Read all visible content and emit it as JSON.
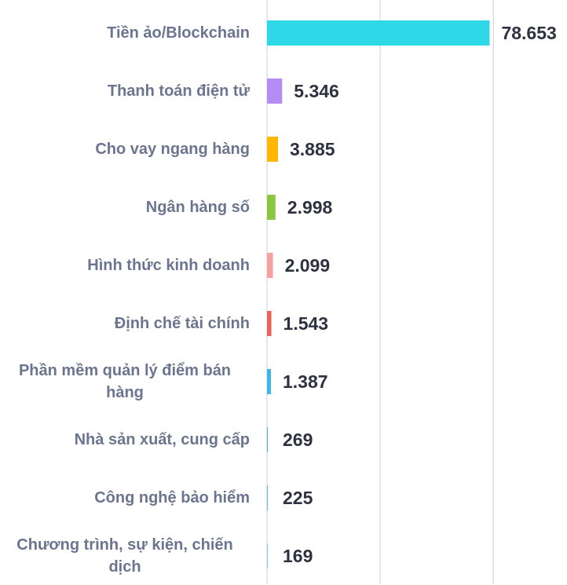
{
  "chart_data": {
    "type": "bar",
    "orientation": "horizontal",
    "categories": [
      "Tiền ảo/Blockchain",
      "Thanh toán điện tử",
      "Cho vay ngang hàng",
      "Ngân hàng số",
      "Hình thức kinh doanh",
      "Định chế tài chính",
      "Phần mềm quản lý điểm bán hàng",
      "Nhà sản xuất, cung cấp",
      "Công nghệ bảo hiểm",
      "Chương trình, sự kiện, chiến dịch"
    ],
    "values": [
      78653,
      5346,
      3885,
      2998,
      2099,
      1543,
      1387,
      269,
      225,
      169
    ],
    "value_labels": [
      "78.653",
      "5.346",
      "3.885",
      "2.998",
      "2.099",
      "1.543",
      "1.387",
      "269",
      "225",
      "169"
    ],
    "colors": [
      "#2ed8e6",
      "#b58cf4",
      "#ffb703",
      "#8cc63f",
      "#f7a1a1",
      "#e8635e",
      "#3fb6e6",
      "#3fb6e6",
      "#3fb6e6",
      "#3fb6e6"
    ],
    "xlim": [
      0,
      106000
    ],
    "xticks": [
      0,
      40000,
      80000
    ],
    "grid": true
  }
}
